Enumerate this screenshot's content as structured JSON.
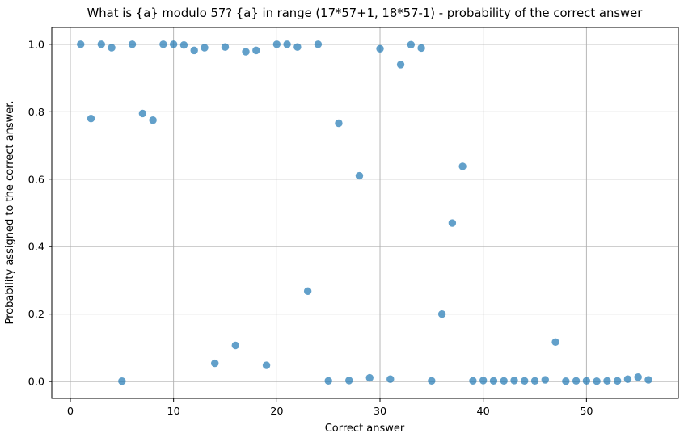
{
  "chart_data": {
    "type": "scatter",
    "title": "What is {a} modulo 57? {a} in range (17*57+1, 18*57-1) - probability of the correct answer",
    "xlabel": "Correct answer",
    "ylabel": "Probability assigned to the correct answer.",
    "x": [
      1,
      2,
      3,
      4,
      5,
      6,
      7,
      8,
      9,
      10,
      11,
      12,
      13,
      14,
      15,
      16,
      17,
      18,
      19,
      20,
      21,
      22,
      23,
      24,
      25,
      26,
      27,
      28,
      29,
      30,
      31,
      32,
      33,
      34,
      35,
      36,
      37,
      38,
      39,
      40,
      41,
      42,
      43,
      44,
      45,
      46,
      47,
      48,
      49,
      50,
      51,
      52,
      53,
      54,
      55,
      56
    ],
    "y": [
      1.0,
      0.78,
      1.0,
      0.99,
      0.001,
      1.0,
      0.795,
      0.775,
      1.0,
      1.0,
      0.998,
      0.982,
      0.99,
      0.054,
      0.992,
      0.107,
      0.978,
      0.982,
      0.048,
      1.0,
      1.0,
      0.992,
      0.268,
      1.0,
      0.002,
      0.766,
      0.003,
      0.61,
      0.011,
      0.987,
      0.007,
      0.94,
      0.999,
      0.989,
      0.002,
      0.2,
      0.47,
      0.638,
      0.002,
      0.003,
      0.002,
      0.002,
      0.003,
      0.002,
      0.002,
      0.005,
      0.117,
      0.001,
      0.002,
      0.002,
      0.001,
      0.002,
      0.002,
      0.007,
      0.013,
      0.005
    ],
    "xlim": [
      -1.8,
      58.9
    ],
    "ylim": [
      -0.05,
      1.05
    ],
    "xticks": {
      "values": [
        0,
        10,
        20,
        30,
        40,
        50
      ],
      "labels": [
        "0",
        "10",
        "20",
        "30",
        "40",
        "50"
      ]
    },
    "yticks": {
      "values": [
        0.0,
        0.2,
        0.4,
        0.6,
        0.8,
        1.0
      ],
      "labels": [
        "0.0",
        "0.2",
        "0.4",
        "0.6",
        "0.8",
        "1.0"
      ]
    },
    "grid": true,
    "legend": null,
    "marker": {
      "color": "#1f77b4",
      "opacity": 0.7,
      "radius": 4.7
    },
    "colors": {
      "grid": "#b0b0b0",
      "spine": "#000000",
      "background": "#ffffff",
      "text": "#000000"
    }
  }
}
